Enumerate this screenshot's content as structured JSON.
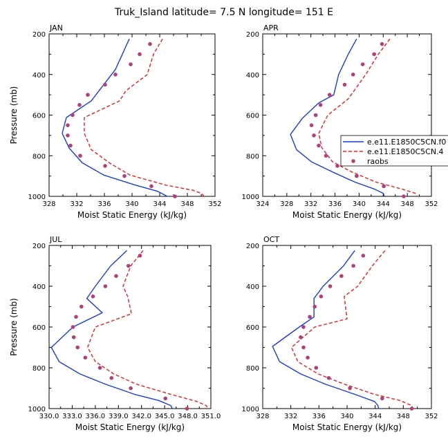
{
  "title": "Truk_Island  latitude= 7.5 N longitude= 151 E",
  "colors": {
    "model1": "#1a3adb",
    "model2": "#e52020",
    "obs": "#b0407a",
    "axis": "#000000"
  },
  "legend": {
    "entries": [
      {
        "label": "e.e11.E1850C5CN.f0",
        "style": "solid-line",
        "color": "#1a3adb"
      },
      {
        "label": "e.e11.E1850C5CN.4",
        "style": "dashed-line",
        "color": "#e52020"
      },
      {
        "label": "raobs",
        "style": "marker",
        "color": "#b0407a"
      }
    ]
  },
  "chart_data": [
    {
      "type": "line",
      "panel": "JAN",
      "xlabel": "Moist Static Energy (kJ/kg)",
      "ylabel": "Pressure (mb)",
      "xlim": [
        328,
        352
      ],
      "ylim": [
        1000,
        200
      ],
      "xticks": [
        328,
        332,
        336,
        340,
        344,
        348,
        352
      ],
      "xtick_labels": [
        "328",
        "332",
        "336",
        "340",
        "344",
        "348",
        "352"
      ],
      "yticks": [
        200,
        400,
        600,
        800,
        1000
      ],
      "series": [
        {
          "name": "e.e11.E1850C5CN.f0",
          "style": "solid",
          "points": [
            [
              339.6,
              225
            ],
            [
              337.6,
              375
            ],
            [
              334.1,
              530
            ],
            [
              330.5,
              612
            ],
            [
              329.9,
              690
            ],
            [
              330.9,
              762
            ],
            [
              332.8,
              835
            ],
            [
              335.9,
              895
            ],
            [
              340.5,
              945
            ],
            [
              343.7,
              975
            ],
            [
              345.1,
              1000
            ]
          ]
        },
        {
          "name": "e.e11.E1850C5CN.4",
          "style": "dashed",
          "points": [
            [
              344.4,
              225
            ],
            [
              343.1,
              300
            ],
            [
              342.2,
              400
            ],
            [
              339.1,
              480
            ],
            [
              338.2,
              530
            ],
            [
              333.1,
              612
            ],
            [
              333.1,
              690
            ],
            [
              334.1,
              770
            ],
            [
              336.7,
              835
            ],
            [
              339.7,
              895
            ],
            [
              344.9,
              945
            ],
            [
              348.8,
              970
            ],
            [
              350.0,
              985
            ],
            [
              350.4,
              1000
            ]
          ]
        },
        {
          "name": "raobs",
          "style": "marker",
          "points": [
            [
              342.6,
              250
            ],
            [
              341.1,
              300
            ],
            [
              339.8,
              350
            ],
            [
              337.6,
              400
            ],
            [
              336.1,
              450
            ],
            [
              333.6,
              500
            ],
            [
              332.4,
              550
            ],
            [
              331.4,
              600
            ],
            [
              330.7,
              650
            ],
            [
              330.7,
              700
            ],
            [
              331.1,
              750
            ],
            [
              332.5,
              800
            ],
            [
              336.1,
              850
            ],
            [
              338.9,
              900
            ],
            [
              342.8,
              950
            ],
            [
              346.2,
              1000
            ]
          ]
        }
      ]
    },
    {
      "type": "line",
      "panel": "APR",
      "xlabel": "Moist Static Energy (kJ/kg)",
      "ylabel": "",
      "xlim": [
        324,
        352
      ],
      "ylim": [
        1000,
        200
      ],
      "xticks": [
        324,
        328,
        332,
        336,
        340,
        344,
        348,
        352
      ],
      "xtick_labels": [
        "324",
        "328",
        "332",
        "336",
        "340",
        "344",
        "348",
        "352"
      ],
      "yticks": [
        200,
        400,
        600,
        800,
        1000
      ],
      "series": [
        {
          "name": "e.e11.E1850C5CN.f0",
          "style": "solid",
          "points": [
            [
              339.6,
              225
            ],
            [
              338.2,
              300
            ],
            [
              336.6,
              400
            ],
            [
              335.8,
              500
            ],
            [
              333.3,
              540
            ],
            [
              330.6,
              615
            ],
            [
              328.6,
              695
            ],
            [
              329.6,
              770
            ],
            [
              332.1,
              830
            ],
            [
              335.6,
              880
            ],
            [
              339.3,
              930
            ],
            [
              342.6,
              965
            ],
            [
              344.0,
              985
            ],
            [
              344.2,
              1000
            ]
          ]
        },
        {
          "name": "e.e11.E1850C5CN.4",
          "style": "dashed",
          "points": [
            [
              345.1,
              225
            ],
            [
              343.2,
              300
            ],
            [
              341.1,
              400
            ],
            [
              338.2,
              520
            ],
            [
              334.8,
              600
            ],
            [
              333.3,
              690
            ],
            [
              333.8,
              760
            ],
            [
              335.6,
              830
            ],
            [
              338.8,
              880
            ],
            [
              342.8,
              930
            ],
            [
              347.2,
              965
            ],
            [
              349.3,
              985
            ],
            [
              349.6,
              1000
            ]
          ]
        },
        {
          "name": "raobs",
          "style": "marker",
          "points": [
            [
              343.8,
              250
            ],
            [
              342.5,
              300
            ],
            [
              340.6,
              350
            ],
            [
              339.0,
              400
            ],
            [
              337.6,
              450
            ],
            [
              335.1,
              500
            ],
            [
              333.6,
              550
            ],
            [
              332.8,
              600
            ],
            [
              332.1,
              650
            ],
            [
              332.5,
              700
            ],
            [
              333.3,
              750
            ],
            [
              334.5,
              800
            ],
            [
              336.4,
              850
            ],
            [
              339.6,
              900
            ],
            [
              344.1,
              950
            ],
            [
              347.4,
              1000
            ]
          ]
        }
      ]
    },
    {
      "type": "line",
      "panel": "JUL",
      "xlabel": "Moist Static Energy (kJ/kg)",
      "ylabel": "Pressure (mb)",
      "xlim": [
        330,
        351
      ],
      "ylim": [
        1000,
        200
      ],
      "xticks": [
        330,
        333,
        336,
        339,
        342,
        345,
        348,
        351
      ],
      "xtick_labels": [
        "330.0",
        "333.0",
        "336.0",
        "339.0",
        "342.0",
        "345.0",
        "348.0",
        "351.0"
      ],
      "yticks": [
        200,
        400,
        600,
        800,
        1000
      ],
      "series": [
        {
          "name": "e.e11.E1850C5CN.f0",
          "style": "solid",
          "points": [
            [
              340.1,
              225
            ],
            [
              338.0,
              300
            ],
            [
              336.0,
              400
            ],
            [
              334.9,
              460
            ],
            [
              336.9,
              530
            ],
            [
              333.1,
              600
            ],
            [
              330.3,
              700
            ],
            [
              331.3,
              770
            ],
            [
              334.0,
              830
            ],
            [
              337.3,
              880
            ],
            [
              341.1,
              930
            ],
            [
              344.2,
              960
            ],
            [
              345.8,
              985
            ],
            [
              346.0,
              1000
            ]
          ]
        },
        {
          "name": "e.e11.E1850C5CN.4",
          "style": "dashed",
          "points": [
            [
              342.2,
              225
            ],
            [
              340.6,
              300
            ],
            [
              339.6,
              400
            ],
            [
              340.2,
              450
            ],
            [
              340.7,
              535
            ],
            [
              336.0,
              600
            ],
            [
              335.0,
              700
            ],
            [
              336.0,
              770
            ],
            [
              338.4,
              830
            ],
            [
              341.3,
              880
            ],
            [
              345.8,
              930
            ],
            [
              349.2,
              965
            ],
            [
              350.4,
              985
            ],
            [
              350.6,
              1000
            ]
          ]
        },
        {
          "name": "raobs",
          "style": "marker",
          "points": [
            [
              341.8,
              250
            ],
            [
              340.3,
              300
            ],
            [
              338.7,
              350
            ],
            [
              337.3,
              400
            ],
            [
              335.7,
              450
            ],
            [
              334.2,
              500
            ],
            [
              333.5,
              550
            ],
            [
              333.1,
              600
            ],
            [
              333.2,
              650
            ],
            [
              333.7,
              700
            ],
            [
              334.7,
              750
            ],
            [
              336.6,
              800
            ],
            [
              338.1,
              850
            ],
            [
              340.6,
              900
            ],
            [
              345.1,
              950
            ],
            [
              347.9,
              1000
            ]
          ]
        }
      ]
    },
    {
      "type": "line",
      "panel": "OCT",
      "xlabel": "Moist Static Energy (kJ/kg)",
      "ylabel": "",
      "xlim": [
        328,
        352
      ],
      "ylim": [
        1000,
        200
      ],
      "xticks": [
        328,
        332,
        336,
        340,
        344,
        348,
        352
      ],
      "xtick_labels": [
        "328",
        "332",
        "336",
        "340",
        "344",
        "348",
        "352"
      ],
      "yticks": [
        200,
        400,
        600,
        800,
        1000
      ],
      "series": [
        {
          "name": "e.e11.E1850C5CN.f0",
          "style": "solid",
          "points": [
            [
              341.1,
              225
            ],
            [
              339.5,
              300
            ],
            [
              336.6,
              400
            ],
            [
              335.3,
              460
            ],
            [
              335.3,
              550
            ],
            [
              333.2,
              600
            ],
            [
              329.4,
              695
            ],
            [
              330.4,
              770
            ],
            [
              333.4,
              830
            ],
            [
              336.9,
              880
            ],
            [
              341.1,
              930
            ],
            [
              343.9,
              965
            ],
            [
              344.4,
              985
            ],
            [
              344.5,
              1000
            ]
          ]
        },
        {
          "name": "e.e11.E1850C5CN.4",
          "style": "dashed",
          "points": [
            [
              345.4,
              225
            ],
            [
              343.6,
              300
            ],
            [
              341.5,
              400
            ],
            [
              339.6,
              450
            ],
            [
              340.0,
              560
            ],
            [
              335.4,
              600
            ],
            [
              332.1,
              700
            ],
            [
              333.0,
              770
            ],
            [
              335.9,
              830
            ],
            [
              339.6,
              880
            ],
            [
              343.9,
              930
            ],
            [
              347.5,
              960
            ],
            [
              349.2,
              985
            ],
            [
              349.4,
              1000
            ]
          ]
        },
        {
          "name": "raobs",
          "style": "marker",
          "points": [
            [
              342.3,
              250
            ],
            [
              340.9,
              300
            ],
            [
              339.2,
              350
            ],
            [
              337.6,
              400
            ],
            [
              336.3,
              450
            ],
            [
              335.4,
              500
            ],
            [
              334.7,
              550
            ],
            [
              333.8,
              600
            ],
            [
              333.4,
              650
            ],
            [
              333.8,
              700
            ],
            [
              334.4,
              750
            ],
            [
              335.6,
              800
            ],
            [
              337.4,
              850
            ],
            [
              340.4,
              900
            ],
            [
              345.0,
              950
            ],
            [
              349.2,
              1000
            ]
          ]
        }
      ]
    }
  ]
}
